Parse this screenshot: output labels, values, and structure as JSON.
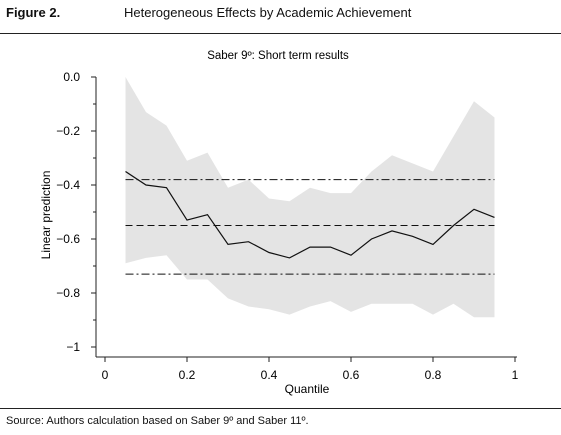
{
  "figure": {
    "label": "Figure 2.",
    "title": "Heterogeneous Effects by Academic Achievement",
    "source": "Source: Authors calculation based on Saber 9º and Saber 11º."
  },
  "colors": {
    "band": "#e4e4e4",
    "line": "#111111",
    "axis": "#222222"
  },
  "chart_data": {
    "type": "line",
    "title": "Saber 9º: Short term results",
    "xlabel": "Quantile",
    "ylabel": "Linear prediction",
    "xlim": [
      0,
      1
    ],
    "ylim": [
      -1,
      0
    ],
    "x_ticks": [
      0,
      0.2,
      0.4,
      0.6,
      0.8,
      1
    ],
    "x_tick_labels": [
      "0",
      "0.2",
      "0.4",
      "0.6",
      "0.8",
      "1"
    ],
    "y_ticks": [
      0,
      -0.2,
      -0.4,
      -0.6,
      -0.8,
      -1
    ],
    "y_tick_labels": [
      "0.0",
      "−0.2",
      "−0.4",
      "−0.6",
      "−0.8",
      "−1"
    ],
    "grid": false,
    "legend": "none",
    "series": [
      {
        "style": "solid",
        "x": [
          0.05,
          0.1,
          0.15,
          0.2,
          0.25,
          0.3,
          0.35,
          0.4,
          0.45,
          0.5,
          0.55,
          0.6,
          0.65,
          0.7,
          0.75,
          0.8,
          0.85,
          0.9,
          0.95
        ],
        "values": [
          -0.35,
          -0.4,
          -0.41,
          -0.53,
          -0.51,
          -0.62,
          -0.61,
          -0.65,
          -0.67,
          -0.63,
          -0.63,
          -0.66,
          -0.6,
          -0.57,
          -0.59,
          -0.62,
          -0.55,
          -0.49,
          -0.52
        ],
        "ci_upper": [
          0.0,
          -0.13,
          -0.18,
          -0.31,
          -0.28,
          -0.41,
          -0.38,
          -0.45,
          -0.46,
          -0.41,
          -0.43,
          -0.43,
          -0.35,
          -0.29,
          -0.32,
          -0.35,
          -0.22,
          -0.09,
          -0.15
        ],
        "ci_lower": [
          -0.69,
          -0.67,
          -0.66,
          -0.75,
          -0.75,
          -0.82,
          -0.85,
          -0.86,
          -0.88,
          -0.85,
          -0.83,
          -0.87,
          -0.84,
          -0.84,
          -0.84,
          -0.88,
          -0.84,
          -0.89,
          -0.89
        ]
      }
    ],
    "reference_lines": [
      {
        "style": "dash-dot",
        "y": -0.38
      },
      {
        "style": "dashed",
        "y": -0.55
      },
      {
        "style": "dash-dot",
        "y": -0.73
      }
    ]
  }
}
